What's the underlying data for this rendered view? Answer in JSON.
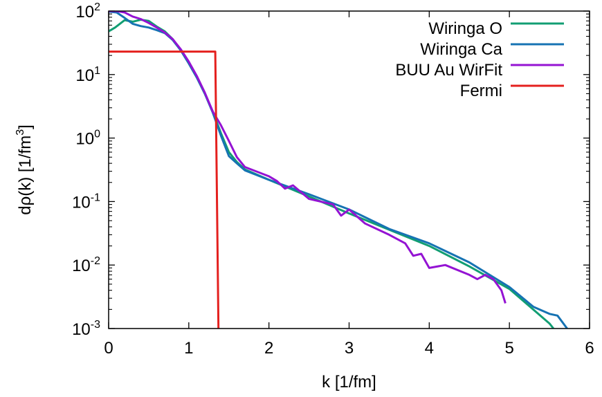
{
  "chart_data": {
    "type": "line",
    "xlabel": "k [1/fm]",
    "ylabel": "dρ(k) [1/fm³]",
    "ylabel_parts": {
      "base": "dρ(k) [1/fm",
      "sup": "3",
      "close": "]"
    },
    "xlim": [
      0,
      6
    ],
    "ylim": [
      0.001,
      100
    ],
    "yscale": "log",
    "xticks": [
      0,
      1,
      2,
      3,
      4,
      5,
      6
    ],
    "xtick_labels": [
      "0",
      "1",
      "2",
      "3",
      "4",
      "5",
      "6"
    ],
    "yticks": [
      {
        "value": 100,
        "base": "10",
        "exp": "2"
      },
      {
        "value": 10,
        "base": "10",
        "exp": "1"
      },
      {
        "value": 1,
        "base": "10",
        "exp": "0"
      },
      {
        "value": 0.1,
        "base": "10",
        "exp": "-1"
      },
      {
        "value": 0.01,
        "base": "10",
        "exp": "-2"
      },
      {
        "value": 0.001,
        "base": "10",
        "exp": "-3"
      }
    ],
    "grid": false,
    "legend_position": "top-right",
    "series": [
      {
        "name": "Wiringa O",
        "color": "#129e73",
        "points": [
          [
            0,
            48
          ],
          [
            0.08,
            55
          ],
          [
            0.2,
            72
          ],
          [
            0.3,
            68
          ],
          [
            0.4,
            73
          ],
          [
            0.5,
            70
          ],
          [
            0.6,
            57
          ],
          [
            0.7,
            48
          ],
          [
            0.8,
            36
          ],
          [
            0.9,
            24
          ],
          [
            1.0,
            15
          ],
          [
            1.1,
            9
          ],
          [
            1.2,
            5
          ],
          [
            1.3,
            2.6
          ],
          [
            1.4,
            1.2
          ],
          [
            1.5,
            0.6
          ],
          [
            1.6,
            0.42
          ],
          [
            1.7,
            0.32
          ],
          [
            2.0,
            0.22
          ],
          [
            2.5,
            0.12
          ],
          [
            3.0,
            0.065
          ],
          [
            3.5,
            0.036
          ],
          [
            4.0,
            0.02
          ],
          [
            4.5,
            0.0095
          ],
          [
            5.0,
            0.0042
          ],
          [
            5.5,
            0.0012
          ],
          [
            5.55,
            0.001
          ]
        ]
      },
      {
        "name": "Wiringa Ca",
        "color": "#1673b3",
        "points": [
          [
            0,
            98
          ],
          [
            0.1,
            95
          ],
          [
            0.2,
            78
          ],
          [
            0.3,
            63
          ],
          [
            0.4,
            58
          ],
          [
            0.5,
            55
          ],
          [
            0.6,
            50
          ],
          [
            0.7,
            45
          ],
          [
            0.8,
            35
          ],
          [
            0.9,
            24
          ],
          [
            1.0,
            15
          ],
          [
            1.1,
            9
          ],
          [
            1.2,
            5
          ],
          [
            1.3,
            2.5
          ],
          [
            1.4,
            1.1
          ],
          [
            1.5,
            0.52
          ],
          [
            1.6,
            0.4
          ],
          [
            1.7,
            0.31
          ],
          [
            2.0,
            0.22
          ],
          [
            2.5,
            0.13
          ],
          [
            3.0,
            0.075
          ],
          [
            3.5,
            0.037
          ],
          [
            4.0,
            0.022
          ],
          [
            4.5,
            0.011
          ],
          [
            5.0,
            0.0045
          ],
          [
            5.3,
            0.0022
          ],
          [
            5.5,
            0.0017
          ],
          [
            5.6,
            0.0016
          ],
          [
            5.72,
            0.001
          ]
        ]
      },
      {
        "name": "BUU Au WirFit",
        "color": "#9413d3",
        "points": [
          [
            0,
            100
          ],
          [
            0.1,
            100
          ],
          [
            0.2,
            95
          ],
          [
            0.3,
            82
          ],
          [
            0.4,
            75
          ],
          [
            0.5,
            65
          ],
          [
            0.6,
            55
          ],
          [
            0.7,
            46
          ],
          [
            0.8,
            36
          ],
          [
            0.9,
            25
          ],
          [
            1.0,
            16
          ],
          [
            1.1,
            9.5
          ],
          [
            1.2,
            5.2
          ],
          [
            1.3,
            2.6
          ],
          [
            1.4,
            1.6
          ],
          [
            1.5,
            0.9
          ],
          [
            1.6,
            0.5
          ],
          [
            1.7,
            0.35
          ],
          [
            2.0,
            0.25
          ],
          [
            2.1,
            0.21
          ],
          [
            2.2,
            0.16
          ],
          [
            2.3,
            0.18
          ],
          [
            2.5,
            0.11
          ],
          [
            2.8,
            0.09
          ],
          [
            2.9,
            0.06
          ],
          [
            3.0,
            0.075
          ],
          [
            3.2,
            0.045
          ],
          [
            3.5,
            0.03
          ],
          [
            3.7,
            0.022
          ],
          [
            3.8,
            0.014
          ],
          [
            3.9,
            0.015
          ],
          [
            4.0,
            0.009
          ],
          [
            4.2,
            0.01
          ],
          [
            4.5,
            0.007
          ],
          [
            4.6,
            0.006
          ],
          [
            4.7,
            0.007
          ],
          [
            4.8,
            0.006
          ],
          [
            4.9,
            0.004
          ],
          [
            4.95,
            0.0025
          ]
        ]
      },
      {
        "name": "Fermi",
        "color": "#e4201e",
        "points": [
          [
            0,
            23
          ],
          [
            1.33,
            23
          ],
          [
            1.37,
            0.001
          ]
        ]
      }
    ]
  }
}
